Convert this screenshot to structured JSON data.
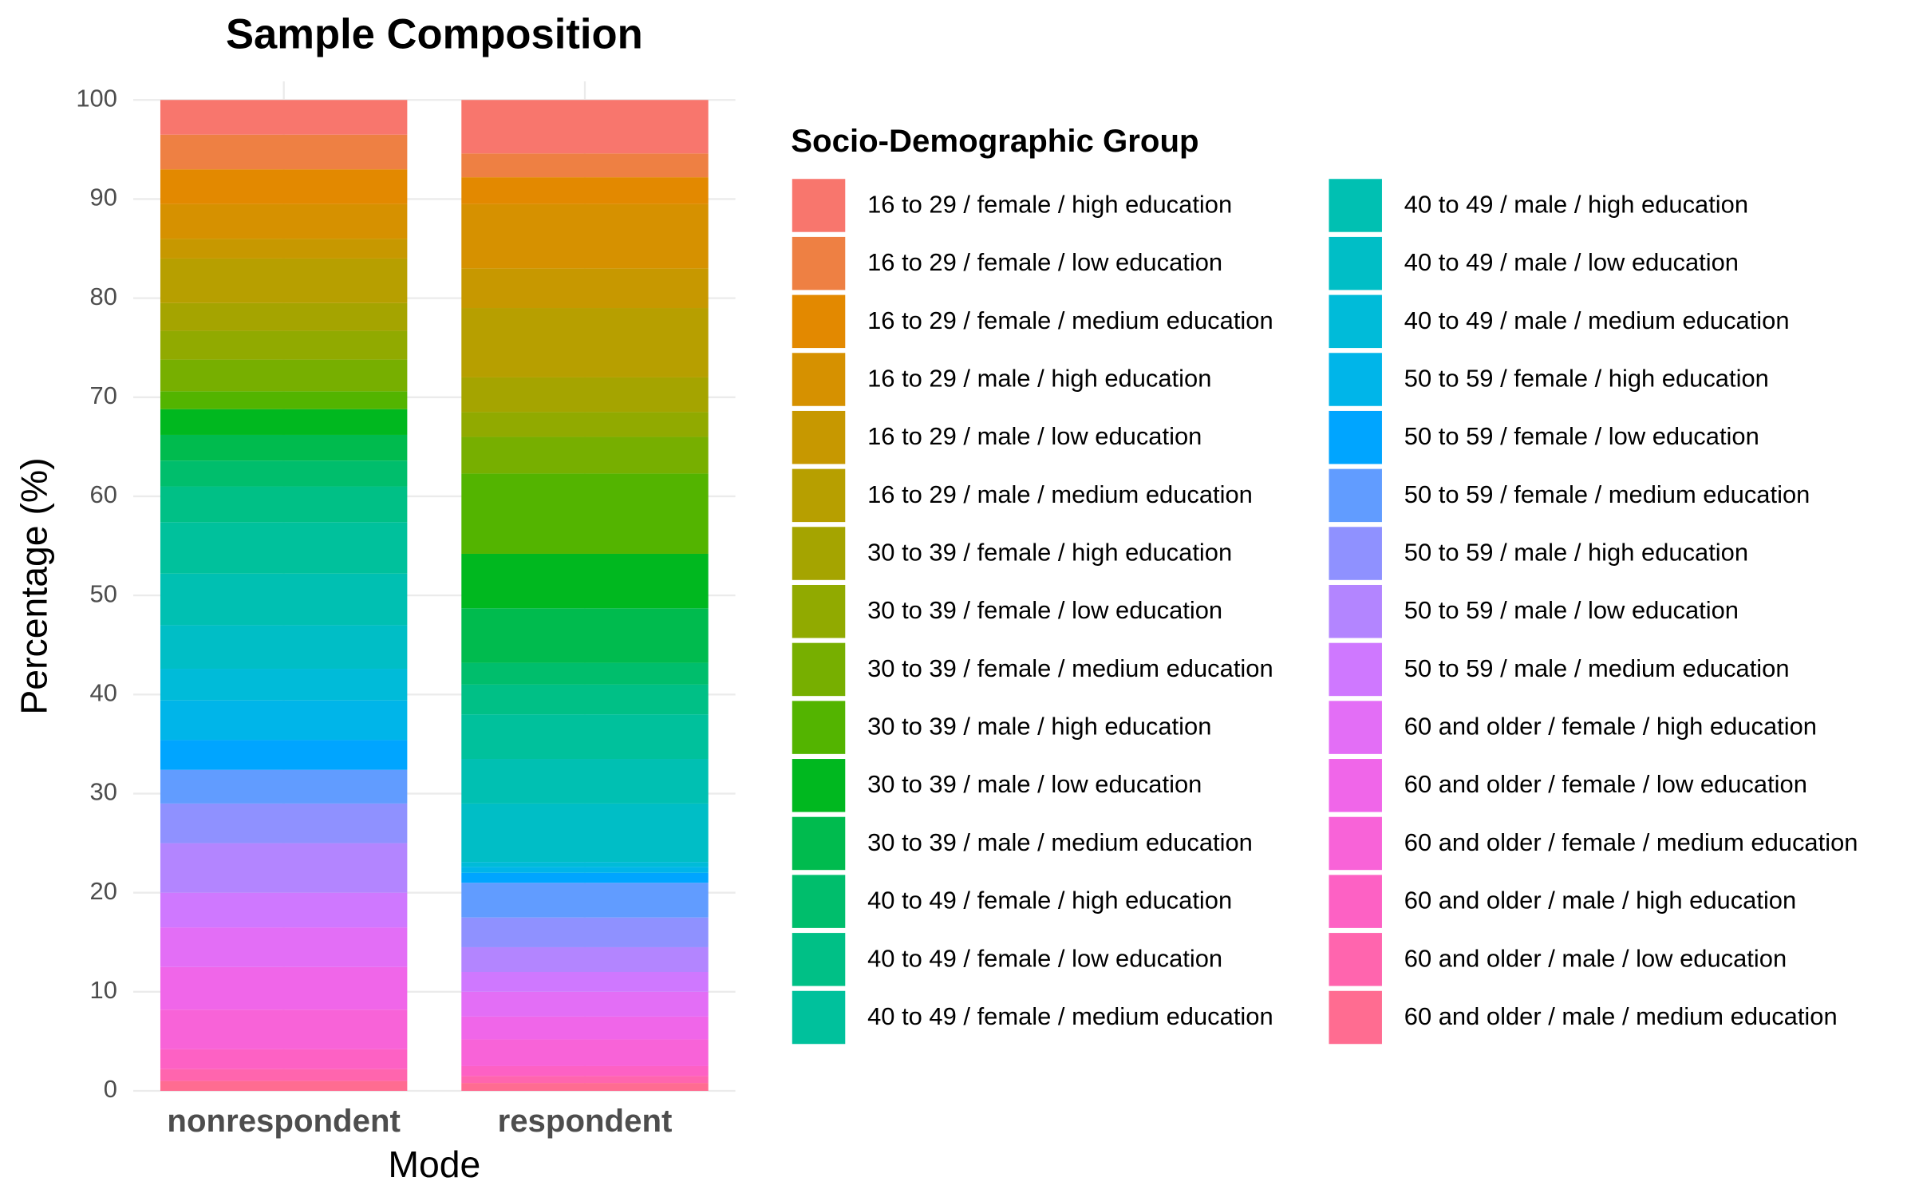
{
  "chart_data": {
    "type": "bar",
    "stacked": true,
    "title": "Sample Composition",
    "x_label": "Mode",
    "y_label": "Percentage (%)",
    "legend_title": "Socio-Demographic Group",
    "categories": [
      "nonrespondent",
      "respondent"
    ],
    "ylim": [
      0,
      100
    ],
    "yticks": [
      0,
      10,
      20,
      30,
      40,
      50,
      60,
      70,
      80,
      90,
      100
    ],
    "grid": true,
    "series": [
      {
        "name": "16 to 29 / female / high education",
        "color": "#F8766D",
        "values": [
          3.5,
          5.4
        ]
      },
      {
        "name": "16 to 29 / female / low education",
        "color": "#EE8043",
        "values": [
          3.5,
          2.4
        ]
      },
      {
        "name": "16 to 29 / female / medium education",
        "color": "#E38900",
        "values": [
          3.5,
          2.7
        ]
      },
      {
        "name": "16 to 29 / male / high education",
        "color": "#D69100",
        "values": [
          3.5,
          6.5
        ]
      },
      {
        "name": "16 to 29 / male / low education",
        "color": "#C79800",
        "values": [
          2,
          4
        ]
      },
      {
        "name": "16 to 29 / male / medium education",
        "color": "#B79F00",
        "values": [
          4.5,
          7
        ]
      },
      {
        "name": "30 to 39 / female / high education",
        "color": "#A5A400",
        "values": [
          2.8,
          3.5
        ]
      },
      {
        "name": "30 to 39 / female / low education",
        "color": "#91AA00",
        "values": [
          2.9,
          2.5
        ]
      },
      {
        "name": "30 to 39 / female / medium education",
        "color": "#77AF00",
        "values": [
          3.2,
          3.7
        ]
      },
      {
        "name": "30 to 39 / male / high education",
        "color": "#53B400",
        "values": [
          1.8,
          8.1
        ]
      },
      {
        "name": "30 to 39 / male / low education",
        "color": "#00B81F",
        "values": [
          2.6,
          5.5
        ]
      },
      {
        "name": "30 to 39 / male / medium education",
        "color": "#00BB4E",
        "values": [
          2.6,
          5.5
        ]
      },
      {
        "name": "40 to 49 / female / high education",
        "color": "#00BE6C",
        "values": [
          2.6,
          2.2
        ]
      },
      {
        "name": "40 to 49 / female / low education",
        "color": "#00C086",
        "values": [
          3.6,
          3
        ]
      },
      {
        "name": "40 to 49 / female / medium education",
        "color": "#00C19C",
        "values": [
          5.2,
          4.5
        ]
      },
      {
        "name": "40 to 49 / male / high education",
        "color": "#00C0B2",
        "values": [
          5.2,
          4.5
        ]
      },
      {
        "name": "40 to 49 / male / low education",
        "color": "#00BEC6",
        "values": [
          4.4,
          5.9
        ]
      },
      {
        "name": "40 to 49 / male / medium education",
        "color": "#00BBD9",
        "values": [
          3.2,
          0.5
        ]
      },
      {
        "name": "50 to 59 / female / high education",
        "color": "#00B5E9",
        "values": [
          4,
          0.6
        ]
      },
      {
        "name": "50 to 59 / female / low education",
        "color": "#00A5FF",
        "values": [
          3,
          1
        ]
      },
      {
        "name": "50 to 59 / female / medium education",
        "color": "#619CFF",
        "values": [
          3.4,
          3.5
        ]
      },
      {
        "name": "50 to 59 / male / high education",
        "color": "#8F91FF",
        "values": [
          4,
          3
        ]
      },
      {
        "name": "50 to 59 / male / low education",
        "color": "#B385FF",
        "values": [
          5,
          2.5
        ]
      },
      {
        "name": "50 to 59 / male / medium education",
        "color": "#CF78FF",
        "values": [
          3.5,
          2
        ]
      },
      {
        "name": "60 and older / female / high education",
        "color": "#E36EF6",
        "values": [
          4,
          2.5
        ]
      },
      {
        "name": "60 and older / female / low education",
        "color": "#F066E9",
        "values": [
          4.3,
          2.3
        ]
      },
      {
        "name": "60 and older / female / medium education",
        "color": "#F863D8",
        "values": [
          4,
          2.7
        ]
      },
      {
        "name": "60 and older / male / high education",
        "color": "#FD61C4",
        "values": [
          2,
          1
        ]
      },
      {
        "name": "60 and older / male / low education",
        "color": "#FF65AE",
        "values": [
          1.2,
          0.7
        ]
      },
      {
        "name": "60 and older / male / medium education",
        "color": "#FF6C91",
        "values": [
          1,
          0.8
        ]
      }
    ]
  }
}
